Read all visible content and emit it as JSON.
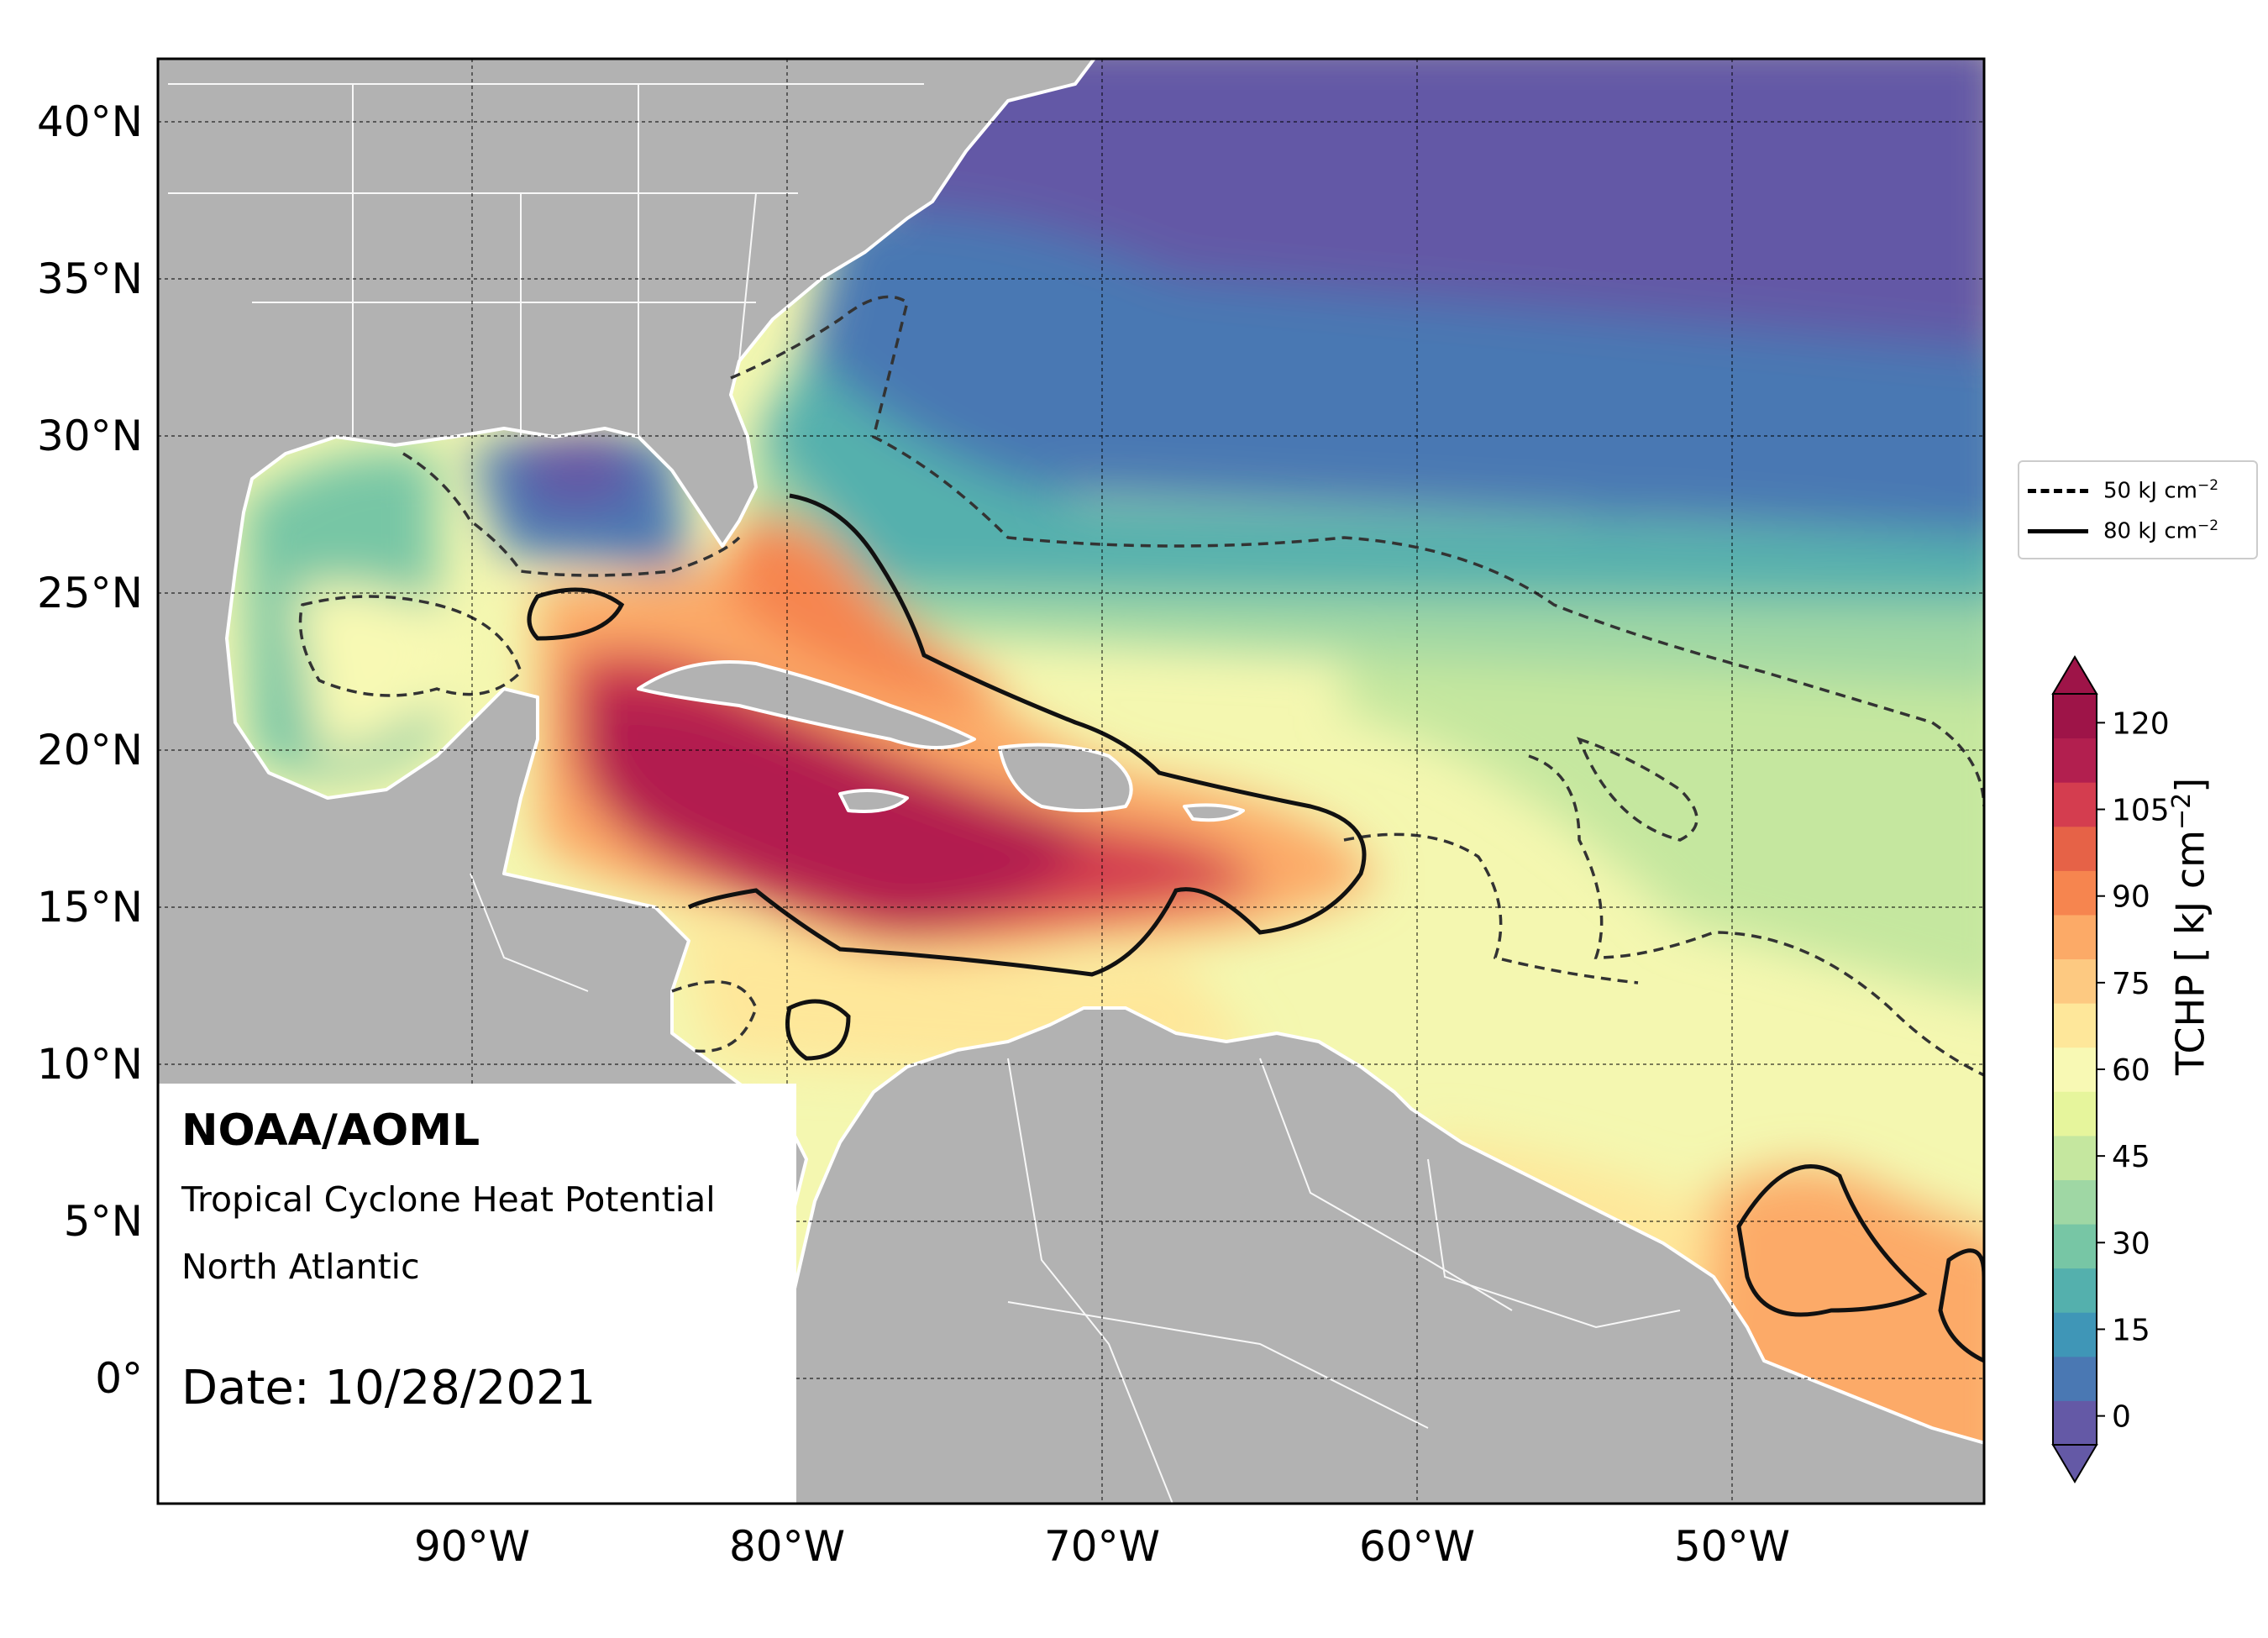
{
  "map": {
    "lat_labels": [
      "40°N",
      "35°N",
      "30°N",
      "25°N",
      "20°N",
      "15°N",
      "10°N",
      "5°N",
      "0°"
    ],
    "lon_labels": [
      "90°W",
      "80°W",
      "70°W",
      "60°W",
      "50°W"
    ],
    "extent": {
      "lon_min": -100,
      "lon_max": -42,
      "lat_min": -4,
      "lat_max": 42
    }
  },
  "info": {
    "org": "NOAA/AOML",
    "product": "Tropical Cyclone Heat Potential",
    "region": "North Atlantic",
    "date": "Date: 10/28/2021"
  },
  "legend": {
    "dashed_label": "50 kJ cm",
    "solid_label": "80 kJ cm",
    "exponent": "−2"
  },
  "colorbar": {
    "title": "TCHP [ kJ cm",
    "title_exponent": "−2",
    "title_end": "]",
    "ticks": [
      "120",
      "105",
      "90",
      "75",
      "60",
      "45",
      "30",
      "15",
      "0"
    ],
    "min": -5,
    "max": 125,
    "colors": [
      "#6459a6",
      "#4a78b3",
      "#3f96b7",
      "#54b0ad",
      "#77c6a5",
      "#9fd7a4",
      "#c5e79f",
      "#e6f59c",
      "#f8f9b4",
      "#fee79a",
      "#fdc981",
      "#fcaa67",
      "#f6854f",
      "#e66247",
      "#d43d4f",
      "#b21f4f",
      "#9e1448"
    ]
  },
  "colors": {
    "land": "#b2b2b2",
    "coast": "#ffffff",
    "deep_cold": "#6459a6",
    "extreme": "#b21f4f"
  }
}
